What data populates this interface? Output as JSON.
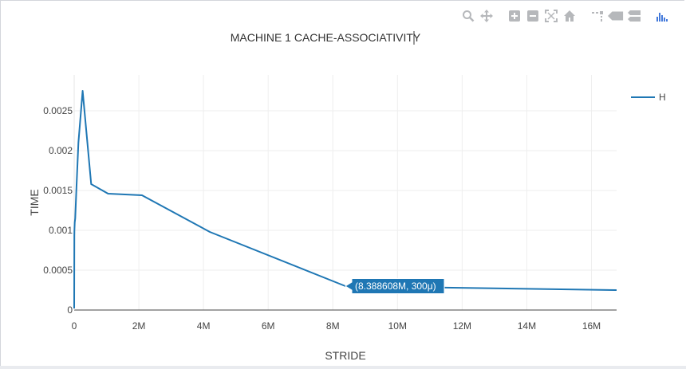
{
  "modebar": {
    "icons": [
      "zoom-icon",
      "pan-icon",
      "zoom-in-icon",
      "zoom-out-icon",
      "autoscale-icon",
      "reset-axes-icon",
      "spike-lines-icon",
      "hover-closest-icon",
      "hover-compare-icon",
      "plotly-logo-icon"
    ],
    "icon_color": "#b6b8bb",
    "logo_color": "#447adb"
  },
  "chart_data": {
    "type": "line",
    "title": "MACHINE 1 CACHE-ASSOCIATIVITY",
    "xlabel": "STRIDE",
    "ylabel": "TIME",
    "xlim": [
      0,
      16777216
    ],
    "ylim": [
      0,
      0.00295
    ],
    "x_ticks": [
      {
        "value": 0,
        "label": "0"
      },
      {
        "value": 2000000,
        "label": "2M"
      },
      {
        "value": 4000000,
        "label": "4M"
      },
      {
        "value": 6000000,
        "label": "6M"
      },
      {
        "value": 8000000,
        "label": "8M"
      },
      {
        "value": 10000000,
        "label": "10M"
      },
      {
        "value": 12000000,
        "label": "12M"
      },
      {
        "value": 14000000,
        "label": "14M"
      },
      {
        "value": 16000000,
        "label": "16M"
      }
    ],
    "y_ticks": [
      {
        "value": 0,
        "label": "0"
      },
      {
        "value": 0.0005,
        "label": "0.0005"
      },
      {
        "value": 0.001,
        "label": "0.001"
      },
      {
        "value": 0.0015,
        "label": "0.0015"
      },
      {
        "value": 0.002,
        "label": "0.002"
      },
      {
        "value": 0.0025,
        "label": "0.0025"
      }
    ],
    "grid": true,
    "legend_position": "top-right",
    "series": [
      {
        "name": "H",
        "color": "#1f77b4",
        "x": [
          0,
          4096,
          8192,
          16384,
          32768,
          65536,
          131072,
          262144,
          524288,
          1048576,
          2097152,
          4194304,
          8388608,
          16777216
        ],
        "y": [
          2e-05,
          0.00093,
          0.001,
          0.0011,
          0.00115,
          0.0015,
          0.0021,
          0.00275,
          0.00158,
          0.00146,
          0.00144,
          0.00098,
          0.0003,
          0.00025
        ]
      }
    ],
    "hover_label": {
      "x": 8388608,
      "y": 0.0003,
      "text": "(8.388608M, 300μ)"
    }
  }
}
